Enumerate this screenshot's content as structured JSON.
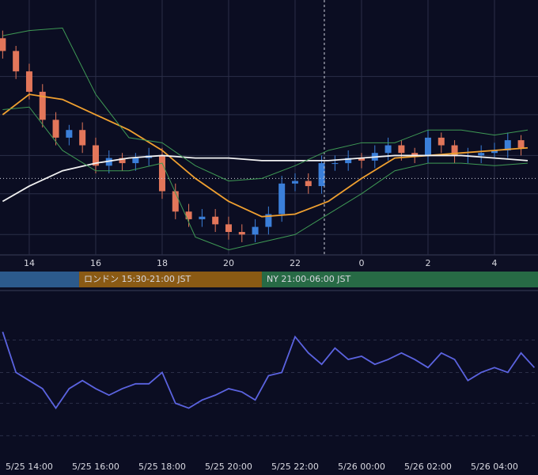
{
  "chart_data": [
    {
      "type": "candlestick",
      "xlim": [
        13.12,
        29.31
      ],
      "ylim": [
        0,
        100
      ],
      "xticks": [
        14,
        16,
        18,
        20,
        22,
        {
          "value": 24,
          "label": "0"
        },
        {
          "value": 26,
          "label": "2"
        },
        {
          "value": 28,
          "label": "4"
        }
      ],
      "ygrid": [
        70,
        55,
        39,
        24,
        8
      ],
      "up_color": "#3b7fd9",
      "down_color": "#e2765a",
      "t": [
        13.2,
        13.6,
        14,
        14.4,
        14.8,
        15.2,
        15.6,
        16,
        16.4,
        16.8,
        17.2,
        17.6,
        18,
        18.4,
        18.8,
        19.2,
        19.6,
        20,
        20.4,
        20.8,
        21.2,
        21.6,
        22,
        22.4,
        22.8,
        23.2,
        23.6,
        24,
        24.4,
        24.8,
        25.2,
        25.6,
        26,
        26.4,
        26.8,
        27.2,
        27.6,
        28,
        28.4,
        28.8
      ],
      "open": [
        85,
        80,
        72,
        64,
        53,
        46,
        49,
        43,
        35,
        38,
        36,
        38,
        39,
        25,
        17,
        14,
        15,
        12,
        9,
        8,
        11,
        16,
        28,
        29,
        27,
        36,
        36,
        38,
        37,
        40,
        43,
        40,
        39,
        46,
        43,
        39,
        39,
        40,
        41,
        45
      ],
      "high": [
        88,
        82,
        75,
        67,
        56,
        51,
        52,
        46,
        41,
        40,
        40,
        42,
        42,
        28,
        20,
        18,
        18,
        15,
        12,
        14,
        19,
        31,
        32,
        32,
        39,
        39,
        41,
        40,
        43,
        46,
        45,
        42,
        49,
        48,
        45,
        42,
        43,
        44,
        48,
        47
      ],
      "low": [
        77,
        69,
        61,
        50,
        43,
        43,
        40,
        32,
        32,
        33,
        33,
        35,
        22,
        14,
        11,
        11,
        9,
        6,
        5,
        5,
        8,
        13,
        25,
        24,
        24,
        33,
        33,
        34,
        34,
        37,
        37,
        36,
        36,
        40,
        36,
        36,
        36,
        38,
        38,
        39
      ],
      "close": [
        80,
        72,
        64,
        53,
        46,
        49,
        43,
        35,
        38,
        36,
        38,
        39,
        25,
        17,
        14,
        15,
        12,
        9,
        8,
        11,
        16,
        28,
        29,
        27,
        36,
        36,
        38,
        37,
        40,
        43,
        40,
        39,
        46,
        43,
        39,
        39,
        40,
        41,
        45,
        42
      ],
      "x": [
        13.2,
        14,
        15,
        16,
        17,
        18,
        19,
        20,
        21,
        22,
        23,
        24,
        25,
        26,
        27,
        28,
        29
      ],
      "series": [
        {
          "color": "#f0a030",
          "values": [
            55,
            63,
            61,
            55,
            49,
            41,
            30,
            21,
            15,
            16,
            21,
            30,
            38,
            39,
            40,
            41,
            42
          ]
        },
        {
          "color": "#f2f2f2",
          "values": [
            21,
            27,
            33,
            36,
            38,
            39,
            38,
            38,
            37,
            37,
            37,
            38,
            39,
            39,
            39,
            38,
            37
          ]
        },
        {
          "color": "#3f9a55",
          "values": [
            86,
            88,
            89,
            63,
            46,
            44,
            35,
            29,
            30,
            35,
            41,
            44,
            44,
            49,
            49,
            47,
            49
          ]
        },
        {
          "color": "#3f9a55",
          "values": [
            57,
            58,
            41,
            33,
            33,
            36,
            7,
            2,
            5,
            8,
            16,
            24,
            33,
            36,
            36,
            35,
            36
          ]
        }
      ],
      "reference_line": 30,
      "marker_time": 22.88,
      "sessions": [
        {
          "start": 9,
          "end": 15.5,
          "color": "#2c5a8c"
        },
        {
          "start": 15.5,
          "end": 21,
          "color": "#8a5a14",
          "label": "ロンドン 15:30-21:00 JST"
        },
        {
          "start": 21,
          "end": 30,
          "color": "#276a45",
          "label": "NY 21:00-06:00 JST"
        }
      ]
    },
    {
      "type": "line",
      "xlim": [
        13.12,
        29.31
      ],
      "ylim": [
        0,
        100
      ],
      "xticks": [
        {
          "value": 14,
          "label": "5/25 14:00"
        },
        {
          "value": 16,
          "label": "5/25 16:00"
        },
        {
          "value": 18,
          "label": "5/25 18:00"
        },
        {
          "value": 20,
          "label": "5/25 20:00"
        },
        {
          "value": 22,
          "label": "5/25 22:00"
        },
        {
          "value": 24,
          "label": "5/26 00:00"
        },
        {
          "value": 26,
          "label": "5/26 02:00"
        },
        {
          "value": 28,
          "label": "5/26 04:00"
        }
      ],
      "ygrid": [
        71,
        51,
        32,
        12
      ],
      "x": [
        13.2,
        13.6,
        14,
        14.4,
        14.8,
        15.2,
        15.6,
        16,
        16.4,
        16.8,
        17.2,
        17.6,
        18,
        18.4,
        18.8,
        19.2,
        19.6,
        20,
        20.4,
        20.8,
        21.2,
        21.6,
        22,
        22.4,
        22.8,
        23.2,
        23.6,
        24,
        24.4,
        24.8,
        25.2,
        25.6,
        26,
        26.4,
        26.8,
        27.2,
        27.6,
        28,
        28.4,
        28.8,
        29.2
      ],
      "series": [
        {
          "color": "#5b63e0",
          "values": [
            76,
            51,
            46,
            41,
            29,
            41,
            46,
            41,
            37,
            41,
            44,
            44,
            51,
            32,
            29,
            34,
            37,
            41,
            39,
            34,
            49,
            51,
            73,
            63,
            56,
            66,
            59,
            61,
            56,
            59,
            63,
            59,
            54,
            63,
            59,
            46,
            51,
            54,
            51,
            63,
            54
          ]
        }
      ]
    }
  ]
}
